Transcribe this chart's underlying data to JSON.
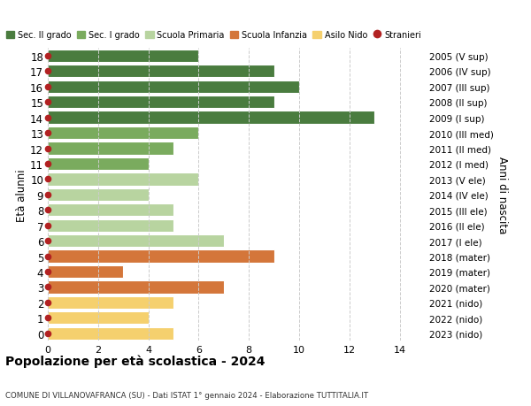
{
  "ages": [
    18,
    17,
    16,
    15,
    14,
    13,
    12,
    11,
    10,
    9,
    8,
    7,
    6,
    5,
    4,
    3,
    2,
    1,
    0
  ],
  "years": [
    "2005 (V sup)",
    "2006 (IV sup)",
    "2007 (III sup)",
    "2008 (II sup)",
    "2009 (I sup)",
    "2010 (III med)",
    "2011 (II med)",
    "2012 (I med)",
    "2013 (V ele)",
    "2014 (IV ele)",
    "2015 (III ele)",
    "2016 (II ele)",
    "2017 (I ele)",
    "2018 (mater)",
    "2019 (mater)",
    "2020 (mater)",
    "2021 (nido)",
    "2022 (nido)",
    "2023 (nido)"
  ],
  "values": [
    6,
    9,
    10,
    9,
    13,
    6,
    5,
    4,
    6,
    4,
    5,
    5,
    7,
    9,
    3,
    7,
    5,
    4,
    5
  ],
  "categories": [
    "Sec. II grado",
    "Sec. II grado",
    "Sec. II grado",
    "Sec. II grado",
    "Sec. II grado",
    "Sec. I grado",
    "Sec. I grado",
    "Sec. I grado",
    "Scuola Primaria",
    "Scuola Primaria",
    "Scuola Primaria",
    "Scuola Primaria",
    "Scuola Primaria",
    "Scuola Infanzia",
    "Scuola Infanzia",
    "Scuola Infanzia",
    "Asilo Nido",
    "Asilo Nido",
    "Asilo Nido"
  ],
  "colors": {
    "Sec. II grado": "#4a7c3f",
    "Sec. I grado": "#7aab5e",
    "Scuola Primaria": "#b8d4a0",
    "Scuola Infanzia": "#d4763a",
    "Asilo Nido": "#f5d06e"
  },
  "legend_order": [
    "Sec. II grado",
    "Sec. I grado",
    "Scuola Primaria",
    "Scuola Infanzia",
    "Asilo Nido",
    "Stranieri"
  ],
  "stranieri_color": "#b22222",
  "title": "Popolazione per età scolastica - 2024",
  "subtitle": "COMUNE DI VILLANOVAFRANCA (SU) - Dati ISTAT 1° gennaio 2024 - Elaborazione TUTTITALIA.IT",
  "ylabel": "Età alunni",
  "xlabel2": "Anni di nascita",
  "xlim": [
    0,
    15
  ],
  "xticks": [
    0,
    2,
    4,
    6,
    8,
    10,
    12,
    14
  ],
  "background_color": "#ffffff",
  "grid_color": "#cccccc",
  "bar_height": 0.82
}
